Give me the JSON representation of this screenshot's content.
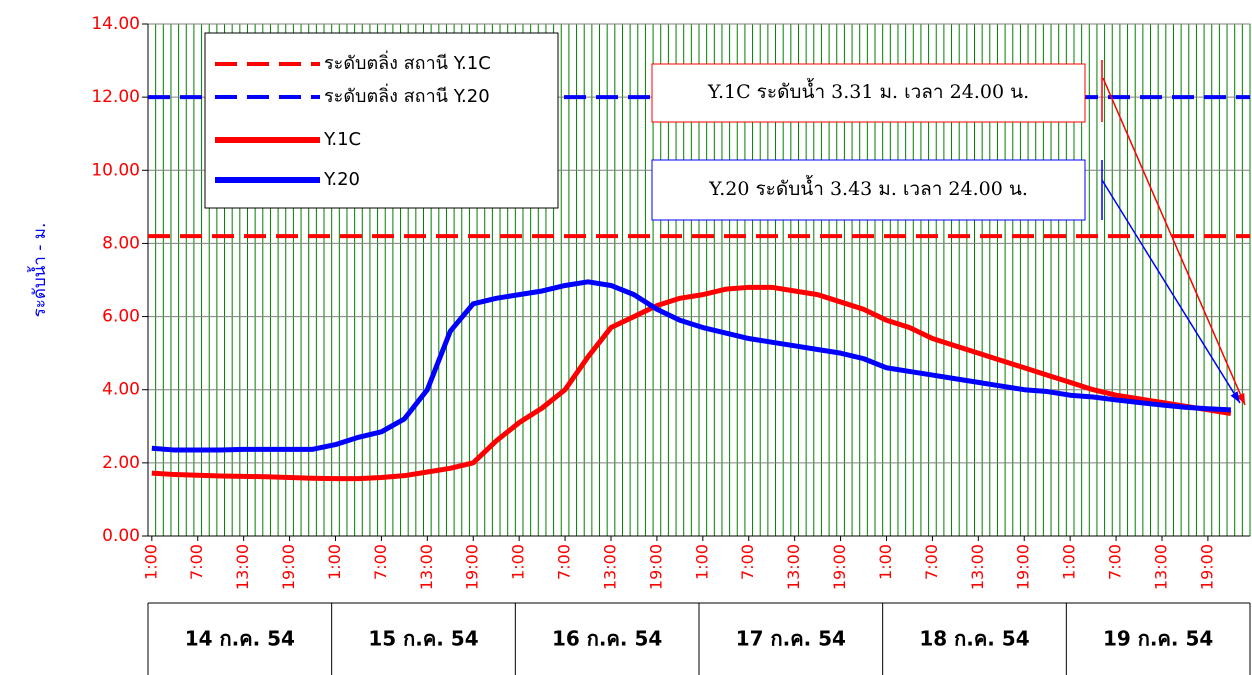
{
  "chart_data": {
    "type": "line",
    "ylabel": "ระดับน้ำ - ม.",
    "ylim": [
      0,
      14
    ],
    "yticks": [
      {
        "value": 0,
        "label": "0.00"
      },
      {
        "value": 2,
        "label": "2.00"
      },
      {
        "value": 4,
        "label": "4.00"
      },
      {
        "value": 6,
        "label": "6.00"
      },
      {
        "value": 8,
        "label": "8.00"
      },
      {
        "value": 10,
        "label": "10.00"
      },
      {
        "value": 12,
        "label": "12.00"
      },
      {
        "value": 14,
        "label": "14.00"
      }
    ],
    "grid": true,
    "days": [
      "14 ก.ค. 54",
      "15 ก.ค. 54",
      "16 ก.ค. 54",
      "17 ก.ค. 54",
      "18 ก.ค. 54",
      "19 ก.ค. 54"
    ],
    "categories": [
      "1:00",
      null,
      "7:00",
      null,
      "13:00",
      null,
      "19:00",
      null,
      "1:00",
      null,
      "7:00",
      null,
      "13:00",
      null,
      "19:00",
      null,
      "1:00",
      null,
      "7:00",
      null,
      "13:00",
      null,
      "19:00",
      null,
      "1:00",
      null,
      "7:00",
      null,
      "13:00",
      null,
      "19:00",
      null,
      "1:00",
      null,
      "7:00",
      null,
      "13:00",
      null,
      "19:00",
      null,
      "1:00",
      null,
      "7:00",
      null,
      "13:00",
      null,
      "19:00",
      null
    ],
    "reference_lines": [
      {
        "name": "ระดับตลิ่ง สถานี Y.1C",
        "value": 8.2,
        "color": "#ff0000"
      },
      {
        "name": "ระดับตลิ่ง สถานี Y.20",
        "value": 12.0,
        "color": "#0000ff"
      }
    ],
    "series": [
      {
        "name": "Y.1C",
        "color": "#ff0000",
        "values": [
          1.72,
          1.68,
          1.66,
          1.64,
          1.63,
          1.62,
          1.6,
          1.58,
          1.57,
          1.57,
          1.6,
          1.65,
          1.75,
          1.85,
          2.0,
          2.6,
          3.1,
          3.5,
          4.0,
          4.9,
          5.7,
          6.0,
          6.3,
          6.5,
          6.6,
          6.75,
          6.8,
          6.8,
          6.7,
          6.6,
          6.4,
          6.2,
          5.9,
          5.7,
          5.4,
          5.2,
          5.0,
          4.8,
          4.6,
          4.4,
          4.2,
          4.0,
          3.85,
          3.75,
          3.65,
          3.55,
          3.45,
          3.35
        ]
      },
      {
        "name": "Y.20",
        "color": "#0000ff",
        "values": [
          2.4,
          2.35,
          2.35,
          2.35,
          2.37,
          2.37,
          2.37,
          2.37,
          2.5,
          2.7,
          2.85,
          3.2,
          4.0,
          5.6,
          6.35,
          6.5,
          6.6,
          6.7,
          6.85,
          6.95,
          6.85,
          6.6,
          6.2,
          5.9,
          5.7,
          5.55,
          5.4,
          5.3,
          5.2,
          5.1,
          5.0,
          4.85,
          4.6,
          4.5,
          4.4,
          4.3,
          4.2,
          4.1,
          4.0,
          3.95,
          3.85,
          3.8,
          3.72,
          3.65,
          3.58,
          3.52,
          3.48,
          3.45
        ]
      }
    ],
    "annotations": [
      {
        "text": "Y.1C ระดับน้ำ 3.31 ม. เวลา 24.00 น.",
        "color": "#ff0000"
      },
      {
        "text": "Y.20 ระดับน้ำ 3.43 ม. เวลา 24.00 น.",
        "color": "#0000ff"
      }
    ]
  }
}
